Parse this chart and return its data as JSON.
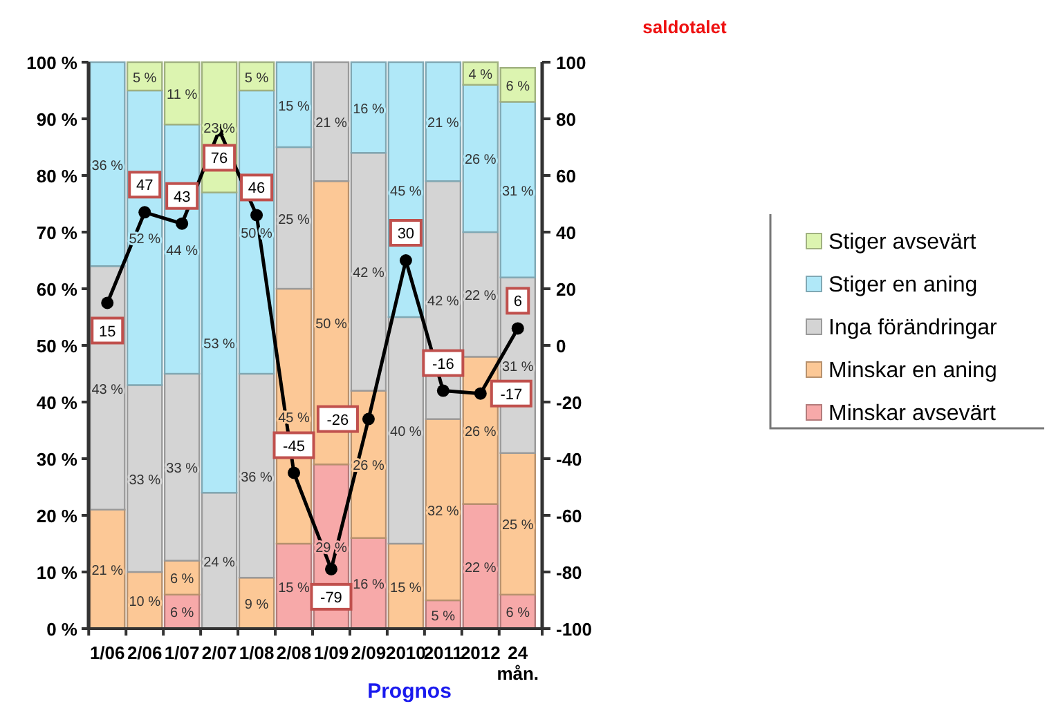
{
  "chart_data": {
    "type": "bar",
    "stacked": true,
    "xlabel": "Prognos",
    "y2label": "saldotalet",
    "categories": [
      "1/06",
      "2/06",
      "1/07",
      "2/07",
      "1/08",
      "2/08",
      "1/09",
      "2/09",
      "2010",
      "2011",
      "2012",
      "24 mån."
    ],
    "series": [
      {
        "name": "Minskar avsevärt",
        "color": "#f7a9a9",
        "values": [
          0,
          0,
          6,
          0,
          0,
          15,
          29,
          16,
          0,
          5,
          22,
          6
        ],
        "value_labels": [
          null,
          null,
          "6 %",
          null,
          null,
          "15 %",
          "29 %",
          "16 %",
          null,
          "5 %",
          "22 %",
          "6 %"
        ]
      },
      {
        "name": "Minskar en aning",
        "color": "#fcc896",
        "values": [
          21,
          10,
          6,
          0,
          9,
          45,
          50,
          26,
          15,
          32,
          26,
          25
        ],
        "value_labels": [
          "21 %",
          "10 %",
          "6 %",
          null,
          "9 %",
          "45 %",
          "50 %",
          "26 %",
          "15 %",
          "32 %",
          "26 %",
          "25 %"
        ]
      },
      {
        "name": "Inga förändringar",
        "color": "#d4d4d4",
        "values": [
          43,
          33,
          33,
          24,
          36,
          25,
          21,
          42,
          40,
          42,
          22,
          31
        ],
        "value_labels": [
          "43 %",
          "33 %",
          "33 %",
          "24 %",
          "36 %",
          "25 %",
          "21 %",
          "42 %",
          "40 %",
          "42 %",
          "22 %",
          "31 %"
        ]
      },
      {
        "name": "Stiger en aning",
        "color": "#b0e8f8",
        "values": [
          36,
          52,
          44,
          53,
          50,
          15,
          0,
          16,
          45,
          21,
          26,
          31
        ],
        "value_labels": [
          "36 %",
          "52 %",
          "44 %",
          "53 %",
          "50 %",
          "15 %",
          null,
          "16 %",
          "45 %",
          "21 %",
          "26 %",
          "31 %"
        ]
      },
      {
        "name": "Stiger avsevärt",
        "color": "#dcf4b0",
        "values": [
          0,
          5,
          11,
          23,
          5,
          0,
          0,
          0,
          0,
          0,
          4,
          6
        ],
        "value_labels": [
          null,
          "5 %",
          "11 %",
          "23 %",
          "5 %",
          null,
          null,
          null,
          null,
          null,
          "4 %",
          "6 %"
        ]
      },
      {
        "type": "line",
        "axis": "y2",
        "color": "#000000",
        "marker": "circle",
        "values": [
          15,
          47,
          43,
          76,
          46,
          -45,
          -79,
          -26,
          30,
          -16,
          -17,
          6
        ],
        "value_labels": [
          "15",
          "47",
          "43",
          "76",
          "46",
          "-45",
          "-79",
          "-26",
          "30",
          "-16",
          "-17",
          "6"
        ]
      }
    ],
    "ylim": [
      0,
      100
    ],
    "yticks": [
      {
        "value": 0,
        "label": "0 %"
      },
      {
        "value": 10,
        "label": "10 %"
      },
      {
        "value": 20,
        "label": "20 %"
      },
      {
        "value": 30,
        "label": "30 %"
      },
      {
        "value": 40,
        "label": "40 %"
      },
      {
        "value": 50,
        "label": "50 %"
      },
      {
        "value": 60,
        "label": "60 %"
      },
      {
        "value": 70,
        "label": "70 %"
      },
      {
        "value": 80,
        "label": "80 %"
      },
      {
        "value": 90,
        "label": "90 %"
      },
      {
        "value": 100,
        "label": "100 %"
      }
    ],
    "y2lim": [
      -100,
      100
    ],
    "y2ticks": [
      -100,
      -80,
      -60,
      -40,
      -20,
      0,
      20,
      40,
      60,
      80,
      100
    ],
    "grid": false,
    "legend": "right"
  }
}
